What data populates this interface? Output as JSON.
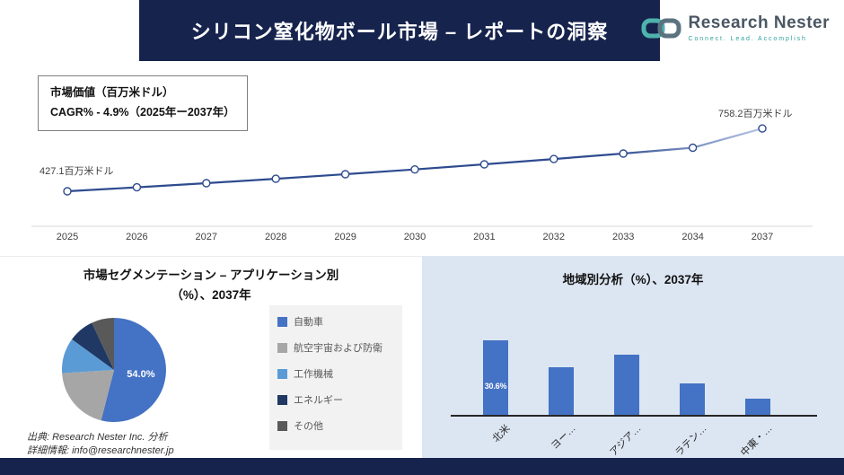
{
  "header": {
    "title": "シリコン窒化物ボール市場 – レポートの洞察",
    "brand": "Research Nester",
    "tagline": "Connect. Lead. Accomplish"
  },
  "info_box": {
    "line1": "市場価値（百万米ドル）",
    "line2": "CAGR% - 4.9%（2025年ー2037年）"
  },
  "chart_data": [
    {
      "type": "line",
      "name": "market-value-trend",
      "x": [
        "2025",
        "2026",
        "2027",
        "2028",
        "2029",
        "2030",
        "2031",
        "2032",
        "2033",
        "2034",
        "2037"
      ],
      "values": [
        427.1,
        448.0,
        470.0,
        493.0,
        517.2,
        542.5,
        569.1,
        597.0,
        626.2,
        656.9,
        758.2
      ],
      "start_label": "427.1百万米ドル",
      "end_label": "758.2百万米ドル",
      "cagr": "4.9%",
      "ylim": [
        380,
        820
      ],
      "line_color": "#2e4b8f",
      "grid": false
    },
    {
      "type": "pie",
      "name": "application-segmentation",
      "title_line1": "市場セグメンテーション – アプリケーション別",
      "title_line2": "（%）、2037年",
      "labels": [
        "自動車",
        "航空宇宙および防衛",
        "工作機械",
        "エネルギー",
        "その他"
      ],
      "values": [
        54.0,
        20.0,
        11.0,
        8.0,
        7.0
      ],
      "colors": [
        "#4472c4",
        "#a6a6a6",
        "#5b9bd5",
        "#1f3864",
        "#595959"
      ],
      "data_label": "54.0%",
      "legend_position": "right"
    },
    {
      "type": "bar",
      "name": "regional-analysis",
      "title": "地域別分析（%）、2037年",
      "categories": [
        "北米",
        "ヨー…",
        "アジア…",
        "ラテン…",
        "中東・…"
      ],
      "values": [
        30.6,
        19.5,
        25.0,
        12.8,
        6.8
      ],
      "bar_color": "#4472c4",
      "data_label": "30.6%",
      "ylim": [
        0,
        35
      ]
    }
  ],
  "source": {
    "line1": "出典: Research Nester Inc. 分析",
    "line2": "詳細情報: info@researchnester.jp"
  }
}
